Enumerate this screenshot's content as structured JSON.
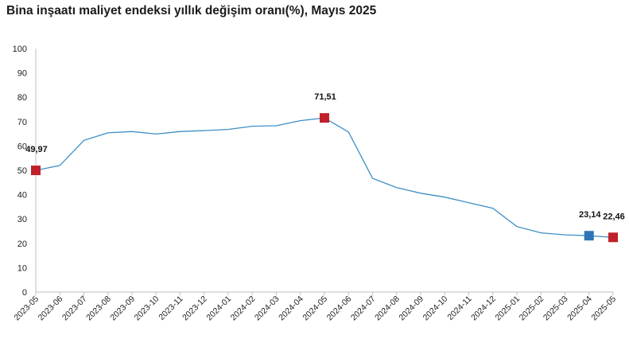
{
  "chart_data": {
    "type": "line",
    "title": "Bina inşaatı maliyet endeksi yıllık değişim oranı(%), Mayıs 2025",
    "xlabel": "",
    "ylabel": "",
    "ylim": [
      0,
      100
    ],
    "yticks": [
      0,
      10,
      20,
      30,
      40,
      50,
      60,
      70,
      80,
      90,
      100
    ],
    "grid": false,
    "categories": [
      "2023-05",
      "2023-06",
      "2023-07",
      "2023-08",
      "2023-09",
      "2023-10",
      "2023-11",
      "2023-12",
      "2024-01",
      "2024-02",
      "2024-03",
      "2024-04",
      "2024-05",
      "2024-06",
      "2024-07",
      "2024-08",
      "2024-09",
      "2024-10",
      "2024-11",
      "2024-12",
      "2025-01",
      "2025-02",
      "2025-03",
      "2025-04",
      "2025-05"
    ],
    "series": [
      {
        "values": [
          49.97,
          52.0,
          62.3,
          65.4,
          65.9,
          64.9,
          65.9,
          66.3,
          66.8,
          68.1,
          68.3,
          70.4,
          71.51,
          65.7,
          46.7,
          42.9,
          40.6,
          39.0,
          36.7,
          34.4,
          26.9,
          24.3,
          23.5,
          23.14,
          22.46
        ]
      }
    ],
    "highlights": [
      {
        "index": 0,
        "label": "49,97",
        "color": "#c0202a"
      },
      {
        "index": 12,
        "label": "71,51",
        "color": "#c0202a"
      },
      {
        "index": 23,
        "label": "23,14",
        "color": "#2e75b6"
      },
      {
        "index": 24,
        "label": "22,46",
        "color": "#c0202a"
      }
    ],
    "line_color": "#3d8fc6"
  }
}
